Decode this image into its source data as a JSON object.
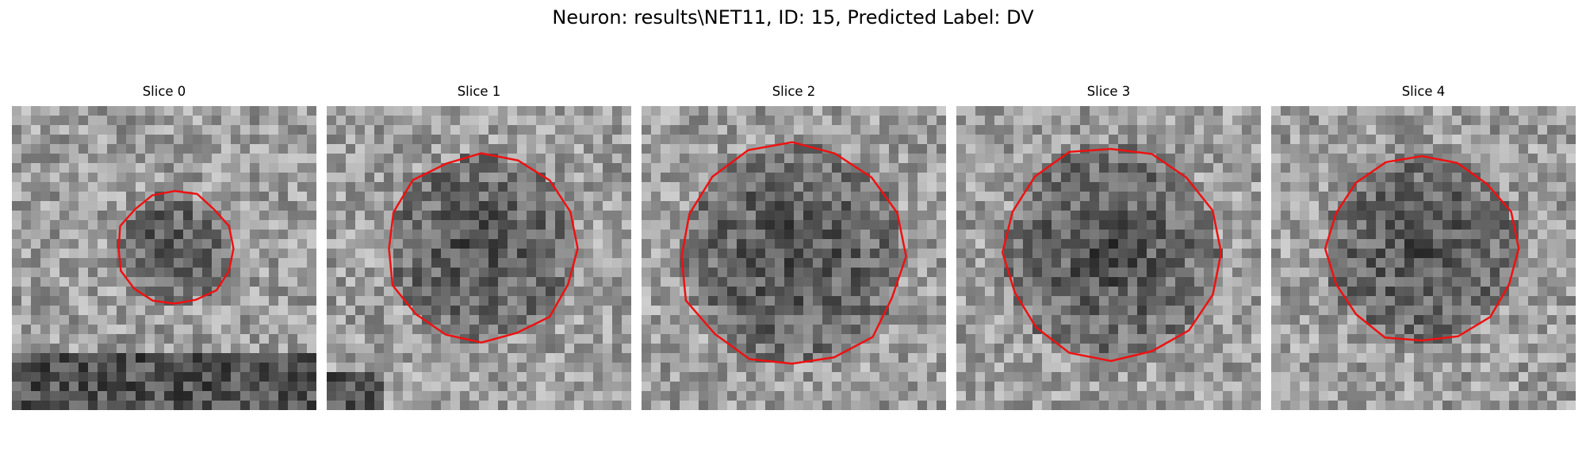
{
  "figure": {
    "suptitle": "Neuron: results\\NET11, ID: 15, Predicted Label: DV"
  },
  "contour_color": "#ee1111",
  "panels": [
    {
      "title": "Slice 0"
    },
    {
      "title": "Slice 1"
    },
    {
      "title": "Slice 2"
    },
    {
      "title": "Slice 3"
    },
    {
      "title": "Slice 4"
    }
  ]
}
